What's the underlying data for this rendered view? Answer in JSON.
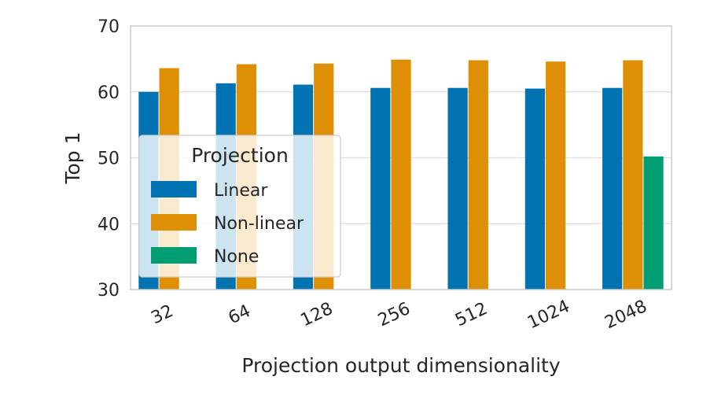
{
  "chart_data": {
    "type": "bar",
    "title": "",
    "xlabel": "Projection output dimensionality",
    "ylabel": "Top 1",
    "ylim": [
      30,
      70
    ],
    "yticks": [
      30,
      40,
      50,
      60,
      70
    ],
    "grid": true,
    "categories": [
      "32",
      "64",
      "128",
      "256",
      "512",
      "1024",
      "2048"
    ],
    "series": [
      {
        "name": "Linear",
        "color": "#0173b2",
        "values": [
          60.0,
          61.3,
          61.1,
          60.6,
          60.6,
          60.5,
          60.6
        ]
      },
      {
        "name": "Non-linear",
        "color": "#de8f05",
        "values": [
          63.6,
          64.2,
          64.3,
          64.9,
          64.8,
          64.6,
          64.8
        ]
      },
      {
        "name": "None",
        "color": "#029e73",
        "values": [
          null,
          null,
          null,
          null,
          null,
          null,
          50.2
        ]
      }
    ],
    "legend": {
      "title": "Projection",
      "placement": "center-left"
    }
  }
}
